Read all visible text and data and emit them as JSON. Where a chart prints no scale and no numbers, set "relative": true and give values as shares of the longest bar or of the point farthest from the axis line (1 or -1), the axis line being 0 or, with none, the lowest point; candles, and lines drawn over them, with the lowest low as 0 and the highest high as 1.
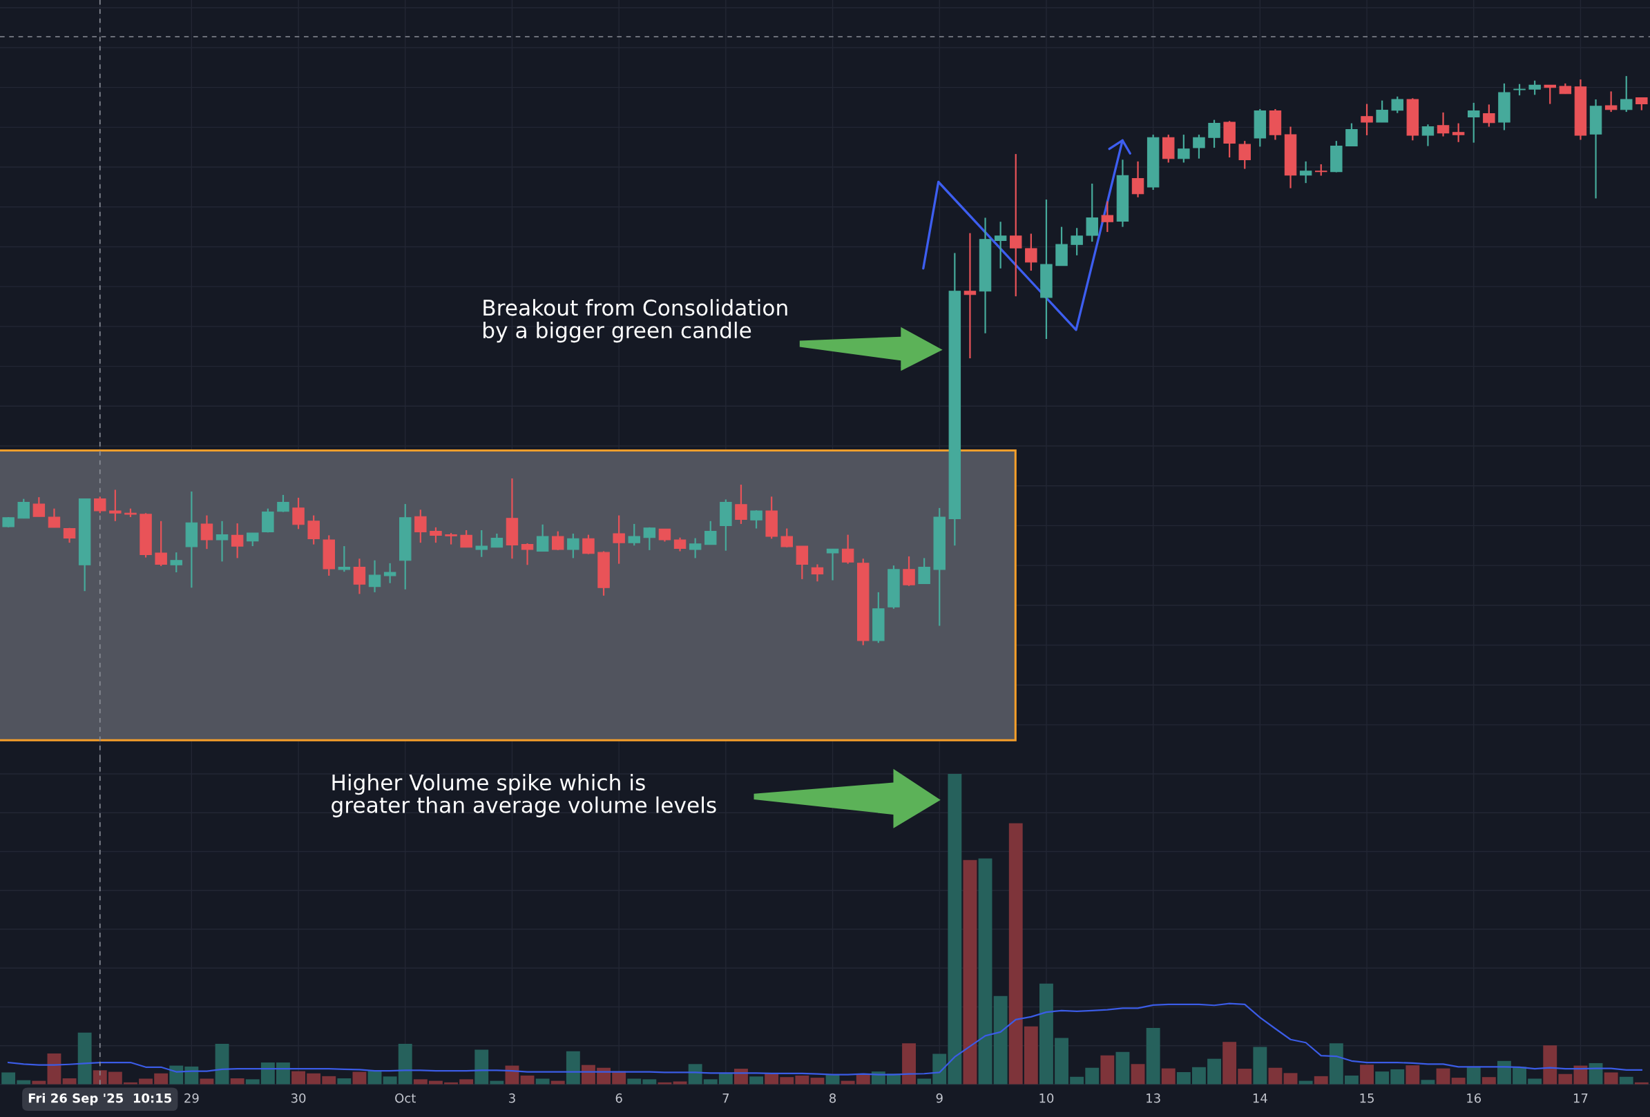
{
  "chart_data": [
    {
      "type": "candlestick",
      "relative": true,
      "categories": [
        null,
        null,
        null,
        null,
        null,
        null,
        "Fri 26 Sep '25  10:15",
        null,
        null,
        null,
        null,
        null,
        "29",
        null,
        null,
        null,
        null,
        null,
        null,
        "30",
        null,
        null,
        null,
        null,
        null,
        null,
        "Oct",
        null,
        null,
        null,
        null,
        null,
        null,
        "3",
        null,
        null,
        null,
        null,
        null,
        null,
        "6",
        null,
        null,
        null,
        null,
        null,
        null,
        "7",
        null,
        null,
        null,
        null,
        null,
        null,
        "8",
        null,
        null,
        null,
        null,
        null,
        null,
        "9",
        null,
        null,
        null,
        null,
        null,
        null,
        "10",
        null,
        null,
        null,
        null,
        null,
        null,
        "13",
        null,
        null,
        null,
        null,
        null,
        null,
        "14",
        null,
        null,
        null,
        null,
        null,
        null,
        "15",
        null,
        null,
        null,
        null,
        null,
        null,
        "16",
        null,
        null,
        null,
        null,
        null,
        null,
        "17",
        null,
        null,
        null,
        null
      ],
      "ohlc": [
        [
          0.208,
          0.225,
          0.207,
          0.224
        ],
        [
          0.223,
          0.257,
          0.223,
          0.251
        ],
        [
          0.248,
          0.26,
          0.226,
          0.226
        ],
        [
          0.225,
          0.24,
          0.207,
          0.207
        ],
        [
          0.205,
          0.206,
          0.18,
          0.188
        ],
        [
          0.141,
          0.257,
          0.095,
          0.257
        ],
        [
          0.257,
          0.261,
          0.232,
          0.236
        ],
        [
          0.236,
          0.273,
          0.218,
          0.232
        ],
        [
          0.232,
          0.24,
          0.225,
          0.23
        ],
        [
          0.23,
          0.232,
          0.154,
          0.159
        ],
        [
          0.162,
          0.218,
          0.139,
          0.142
        ],
        [
          0.141,
          0.163,
          0.128,
          0.149
        ],
        [
          0.173,
          0.27,
          0.101,
          0.215
        ],
        [
          0.213,
          0.228,
          0.169,
          0.185
        ],
        [
          0.185,
          0.218,
          0.147,
          0.194
        ],
        [
          0.193,
          0.214,
          0.153,
          0.174
        ],
        [
          0.183,
          0.197,
          0.174,
          0.197
        ],
        [
          0.199,
          0.24,
          0.198,
          0.234
        ],
        [
          0.235,
          0.264,
          0.234,
          0.251
        ],
        [
          0.241,
          0.259,
          0.204,
          0.212
        ],
        [
          0.218,
          0.228,
          0.177,
          0.187
        ],
        [
          0.185,
          0.193,
          0.122,
          0.134
        ],
        [
          0.133,
          0.174,
          0.129,
          0.137
        ],
        [
          0.137,
          0.152,
          0.09,
          0.107
        ],
        [
          0.103,
          0.149,
          0.093,
          0.123
        ],
        [
          0.122,
          0.144,
          0.109,
          0.128
        ],
        [
          0.149,
          0.248,
          0.098,
          0.224
        ],
        [
          0.226,
          0.238,
          0.18,
          0.199
        ],
        [
          0.2,
          0.207,
          0.18,
          0.193
        ],
        [
          0.194,
          0.197,
          0.177,
          0.192
        ],
        [
          0.193,
          0.202,
          0.172,
          0.172
        ],
        [
          0.168,
          0.202,
          0.155,
          0.174
        ],
        [
          0.172,
          0.196,
          0.172,
          0.188
        ],
        [
          0.223,
          0.293,
          0.152,
          0.176
        ],
        [
          0.177,
          0.179,
          0.141,
          0.168
        ],
        [
          0.165,
          0.212,
          0.165,
          0.191
        ],
        [
          0.191,
          0.2,
          0.167,
          0.168
        ],
        [
          0.168,
          0.196,
          0.153,
          0.187
        ],
        [
          0.187,
          0.194,
          0.16,
          0.161
        ],
        [
          0.163,
          0.165,
          0.087,
          0.101
        ],
        [
          0.196,
          0.228,
          0.143,
          0.18
        ],
        [
          0.18,
          0.213,
          0.175,
          0.191
        ],
        [
          0.189,
          0.207,
          0.167,
          0.206
        ],
        [
          0.204,
          0.204,
          0.182,
          0.185
        ],
        [
          0.185,
          0.189,
          0.165,
          0.17
        ],
        [
          0.168,
          0.188,
          0.153,
          0.178
        ],
        [
          0.177,
          0.218,
          0.177,
          0.2
        ],
        [
          0.21,
          0.256,
          0.166,
          0.251
        ],
        [
          0.247,
          0.282,
          0.213,
          0.221
        ],
        [
          0.22,
          0.237,
          0.205,
          0.236
        ],
        [
          0.236,
          0.261,
          0.187,
          0.191
        ],
        [
          0.191,
          0.205,
          0.172,
          0.173
        ],
        [
          0.174,
          0.174,
          0.116,
          0.142
        ],
        [
          0.136,
          0.142,
          0.112,
          0.125
        ],
        [
          0.162,
          0.169,
          0.114,
          0.169
        ],
        [
          0.169,
          0.194,
          0.143,
          0.146
        ],
        [
          0.144,
          0.152,
          0,
          0.008
        ],
        [
          0.008,
          0.093,
          0.004,
          0.064
        ],
        [
          0.067,
          0.14,
          0.064,
          0.133
        ],
        [
          0.133,
          0.156,
          0.104,
          0.106
        ],
        [
          0.108,
          0.153,
          0.108,
          0.137
        ],
        [
          0.133,
          0.241,
          0.034,
          0.225
        ],
        [
          0.222,
          0.689,
          0.175,
          0.622
        ],
        [
          0.622,
          0.724,
          0.504,
          0.616
        ],
        [
          0.622,
          0.751,
          0.548,
          0.713
        ],
        [
          0.711,
          0.744,
          0.662,
          0.719
        ],
        [
          0.719,
          0.863,
          0.613,
          0.698
        ],
        [
          0.697,
          0.723,
          0.658,
          0.673
        ],
        [
          0.611,
          0.783,
          0.538,
          0.669
        ],
        [
          0.667,
          0.735,
          0.667,
          0.704
        ],
        [
          0.704,
          0.733,
          0.685,
          0.719
        ],
        [
          0.72,
          0.811,
          0.709,
          0.751
        ],
        [
          0.755,
          0.78,
          0.726,
          0.744
        ],
        [
          0.745,
          0.853,
          0.735,
          0.825
        ],
        [
          0.82,
          0.85,
          0.787,
          0.793
        ],
        [
          0.805,
          0.897,
          0.8,
          0.892
        ],
        [
          0.892,
          0.897,
          0.848,
          0.855
        ],
        [
          0.855,
          0.897,
          0.848,
          0.872
        ],
        [
          0.874,
          0.897,
          0.855,
          0.892
        ],
        [
          0.892,
          0.923,
          0.874,
          0.917
        ],
        [
          0.919,
          0.921,
          0.857,
          0.882
        ],
        [
          0.88,
          0.886,
          0.837,
          0.853
        ],
        [
          0.891,
          0.942,
          0.876,
          0.939
        ],
        [
          0.939,
          0.942,
          0.888,
          0.897
        ],
        [
          0.897,
          0.911,
          0.803,
          0.826
        ],
        [
          0.826,
          0.85,
          0.812,
          0.833
        ],
        [
          0.833,
          0.845,
          0.825,
          0.832
        ],
        [
          0.832,
          0.886,
          0.831,
          0.877
        ],
        [
          0.877,
          0.917,
          0.877,
          0.906
        ],
        [
          0.929,
          0.951,
          0.896,
          0.919
        ],
        [
          0.919,
          0.957,
          0.919,
          0.94
        ],
        [
          0.94,
          0.964,
          0.935,
          0.959
        ],
        [
          0.959,
          0.961,
          0.887,
          0.896
        ],
        [
          0.896,
          0.915,
          0.877,
          0.911
        ],
        [
          0.913,
          0.936,
          0.894,
          0.9
        ],
        [
          0.901,
          0.917,
          0.884,
          0.897
        ],
        [
          0.928,
          0.953,
          0.883,
          0.939
        ],
        [
          0.934,
          0.95,
          0.911,
          0.918
        ],
        [
          0.919,
          0.987,
          0.905,
          0.971
        ],
        [
          0.976,
          0.986,
          0.966,
          0.977
        ],
        [
          0.977,
          0.992,
          0.967,
          0.984
        ],
        [
          0.984,
          0.984,
          0.951,
          0.98
        ],
        [
          0.982,
          0.987,
          0.969,
          0.969
        ],
        [
          0.981,
          0.994,
          0.888,
          0.896
        ],
        [
          0.898,
          0.959,
          0.785,
          0.947
        ],
        [
          0.948,
          0.973,
          0.937,
          0.941
        ],
        [
          0.941,
          1,
          0.937,
          0.959
        ],
        [
          0.962,
          0.962,
          0.94,
          0.951
        ]
      ],
      "colors": [
        "#46aa9b",
        "#46aa9b",
        "#e95358",
        "#e95358",
        "#e95358",
        "#46aa9b",
        "#e95358",
        "#e95358",
        "#e95358",
        "#e95358",
        "#e95358",
        "#46aa9b",
        "#46aa9b",
        "#e95358",
        "#46aa9b",
        "#e95358",
        "#46aa9b",
        "#46aa9b",
        "#46aa9b",
        "#e95358",
        "#e95358",
        "#e95358",
        "#46aa9b",
        "#e95358",
        "#46aa9b",
        "#46aa9b",
        "#46aa9b",
        "#e95358",
        "#e95358",
        "#e95358",
        "#e95358",
        "#46aa9b",
        "#46aa9b",
        "#e95358",
        "#e95358",
        "#46aa9b",
        "#e95358",
        "#46aa9b",
        "#e95358",
        "#e95358",
        "#e95358",
        "#46aa9b",
        "#46aa9b",
        "#e95358",
        "#e95358",
        "#46aa9b",
        "#46aa9b",
        "#46aa9b",
        "#e95358",
        "#46aa9b",
        "#e95358",
        "#e95358",
        "#e95358",
        "#e95358",
        "#46aa9b",
        "#e95358",
        "#e95358",
        "#46aa9b",
        "#46aa9b",
        "#e95358",
        "#46aa9b",
        "#46aa9b",
        "#46aa9b",
        "#e95358",
        "#46aa9b",
        "#46aa9b",
        "#e95358",
        "#e95358",
        "#46aa9b",
        "#46aa9b",
        "#46aa9b",
        "#46aa9b",
        "#e95358",
        "#46aa9b",
        "#e95358",
        "#46aa9b",
        "#e95358",
        "#46aa9b",
        "#46aa9b",
        "#46aa9b",
        "#e95358",
        "#e95358",
        "#46aa9b",
        "#e95358",
        "#e95358",
        "#46aa9b",
        "#e95358",
        "#46aa9b",
        "#46aa9b",
        "#e95358",
        "#46aa9b",
        "#46aa9b",
        "#e95358",
        "#46aa9b",
        "#e95358",
        "#e95358",
        "#46aa9b",
        "#e95358",
        "#46aa9b",
        "#46aa9b",
        "#46aa9b",
        "#e95358",
        "#e95358",
        "#e95358",
        "#46aa9b",
        "#e95358",
        "#46aa9b",
        "#e95358"
      ],
      "tick_labels": false,
      "grid": true,
      "bands": [
        {
          "axis": "y",
          "from": -0.167,
          "to": 0.342,
          "color": "#51545e"
        }
      ],
      "ref_lines": [
        {
          "axis": "x",
          "value": "Fri 26 Sep '25  10:15",
          "line_style": "dashed",
          "color": "#8a8d96"
        },
        {
          "axis": "y",
          "value": 1.069,
          "line_style": "dashed",
          "color": "#8a8d96"
        }
      ],
      "annotations": [
        "Breakout from Consolidation\nby a bigger green candle"
      ]
    },
    {
      "type": "bar",
      "relative": true,
      "categories": [
        null,
        null,
        null,
        null,
        null,
        null,
        "Fri 26 Sep '25  10:15",
        null,
        null,
        null,
        null,
        null,
        "29",
        null,
        null,
        null,
        null,
        null,
        null,
        "30",
        null,
        null,
        null,
        null,
        null,
        null,
        "Oct",
        null,
        null,
        null,
        null,
        null,
        null,
        "3",
        null,
        null,
        null,
        null,
        null,
        null,
        "6",
        null,
        null,
        null,
        null,
        null,
        null,
        "7",
        null,
        null,
        null,
        null,
        null,
        null,
        "8",
        null,
        null,
        null,
        null,
        null,
        null,
        "9",
        null,
        null,
        null,
        null,
        null,
        null,
        "10",
        null,
        null,
        null,
        null,
        null,
        null,
        "13",
        null,
        null,
        null,
        null,
        null,
        null,
        "14",
        null,
        null,
        null,
        null,
        null,
        null,
        "15",
        null,
        null,
        null,
        null,
        null,
        null,
        "16",
        null,
        null,
        null,
        null,
        null,
        null,
        "17",
        null,
        null,
        null,
        null
      ],
      "series": [
        {
          "type": "bar",
          "colors": [
            "#26615c",
            "#26615c",
            "#7e343a",
            "#7e343a",
            "#7e343a",
            "#26615c",
            "#7e343a",
            "#7e343a",
            "#7e343a",
            "#7e343a",
            "#7e343a",
            "#26615c",
            "#26615c",
            "#7e343a",
            "#26615c",
            "#7e343a",
            "#26615c",
            "#26615c",
            "#26615c",
            "#7e343a",
            "#7e343a",
            "#7e343a",
            "#26615c",
            "#7e343a",
            "#26615c",
            "#26615c",
            "#26615c",
            "#7e343a",
            "#7e343a",
            "#7e343a",
            "#7e343a",
            "#26615c",
            "#26615c",
            "#7e343a",
            "#7e343a",
            "#26615c",
            "#7e343a",
            "#26615c",
            "#7e343a",
            "#7e343a",
            "#7e343a",
            "#26615c",
            "#26615c",
            "#7e343a",
            "#7e343a",
            "#26615c",
            "#26615c",
            "#26615c",
            "#7e343a",
            "#26615c",
            "#7e343a",
            "#7e343a",
            "#7e343a",
            "#7e343a",
            "#26615c",
            "#7e343a",
            "#7e343a",
            "#26615c",
            "#26615c",
            "#7e343a",
            "#26615c",
            "#26615c",
            "#26615c",
            "#7e343a",
            "#26615c",
            "#26615c",
            "#7e343a",
            "#7e343a",
            "#26615c",
            "#26615c",
            "#26615c",
            "#26615c",
            "#7e343a",
            "#26615c",
            "#7e343a",
            "#26615c",
            "#7e343a",
            "#26615c",
            "#26615c",
            "#26615c",
            "#7e343a",
            "#7e343a",
            "#26615c",
            "#7e343a",
            "#7e343a",
            "#26615c",
            "#7e343a",
            "#26615c",
            "#26615c",
            "#7e343a",
            "#26615c",
            "#26615c",
            "#7e343a",
            "#26615c",
            "#7e343a",
            "#7e343a",
            "#26615c",
            "#7e343a",
            "#26615c",
            "#26615c",
            "#26615c",
            "#7e343a",
            "#7e343a",
            "#7e343a",
            "#26615c",
            "#7e343a",
            "#26615c",
            "#7e343a"
          ],
          "values": [
            0.039,
            0.014,
            0.012,
            0.1,
            0.02,
            0.167,
            0.046,
            0.041,
            0.007,
            0.019,
            0.036,
            0.061,
            0.058,
            0.019,
            0.131,
            0.02,
            0.017,
            0.071,
            0.071,
            0.043,
            0.036,
            0.027,
            0.02,
            0.041,
            0.046,
            0.026,
            0.131,
            0.017,
            0.012,
            0.007,
            0.017,
            0.112,
            0.012,
            0.061,
            0.029,
            0.019,
            0.012,
            0.107,
            0.063,
            0.054,
            0.043,
            0.019,
            0.017,
            0.007,
            0.01,
            0.066,
            0.017,
            0.036,
            0.051,
            0.026,
            0.037,
            0.024,
            0.029,
            0.022,
            0.032,
            0.012,
            0.034,
            0.042,
            0.035,
            0.133,
            0.019,
            0.099,
            1,
            0.723,
            0.728,
            0.285,
            0.841,
            0.187,
            0.325,
            0.15,
            0.025,
            0.054,
            0.094,
            0.105,
            0.066,
            0.182,
            0.052,
            0.04,
            0.056,
            0.083,
            0.137,
            0.051,
            0.121,
            0.054,
            0.037,
            0.012,
            0.027,
            0.133,
            0.029,
            0.064,
            0.042,
            0.049,
            0.062,
            0.015,
            0.052,
            0.022,
            0.057,
            0.024,
            0.076,
            0.057,
            0.019,
            0.126,
            0.034,
            0.061,
            0.069,
            0.039,
            0.025,
            0.007
          ]
        },
        {
          "type": "line",
          "color": "#3b5ce6",
          "values": [
            0.071,
            0.066,
            0.063,
            0.063,
            0.065,
            0.068,
            0.071,
            0.071,
            0.071,
            0.056,
            0.056,
            0.041,
            0.043,
            0.043,
            0.049,
            0.051,
            0.051,
            0.051,
            0.051,
            0.051,
            0.051,
            0.051,
            0.049,
            0.048,
            0.044,
            0.044,
            0.046,
            0.046,
            0.044,
            0.044,
            0.044,
            0.046,
            0.046,
            0.044,
            0.041,
            0.041,
            0.041,
            0.041,
            0.041,
            0.041,
            0.041,
            0.041,
            0.041,
            0.039,
            0.039,
            0.039,
            0.037,
            0.037,
            0.037,
            0.037,
            0.036,
            0.036,
            0.036,
            0.034,
            0.032,
            0.032,
            0.034,
            0.032,
            0.032,
            0.034,
            0.035,
            0.039,
            0.089,
            0.123,
            0.157,
            0.169,
            0.209,
            0.218,
            0.233,
            0.238,
            0.236,
            0.238,
            0.241,
            0.246,
            0.246,
            0.256,
            0.258,
            0.258,
            0.258,
            0.255,
            0.261,
            0.258,
            0.216,
            0.18,
            0.145,
            0.135,
            0.093,
            0.091,
            0.076,
            0.071,
            0.071,
            0.071,
            0.069,
            0.066,
            0.066,
            0.057,
            0.057,
            0.057,
            0.057,
            0.056,
            0.051,
            0.054,
            0.051,
            0.051,
            0.052,
            0.052,
            0.047,
            0.047
          ]
        }
      ],
      "grid": true,
      "ref_lines": [
        {
          "axis": "x",
          "value": "Fri 26 Sep '25  10:15",
          "line_style": "dashed",
          "color": "#8a8d96"
        }
      ],
      "annotations": [
        "Higher Volume spike which is\ngreater than average volume levels"
      ]
    }
  ]
}
